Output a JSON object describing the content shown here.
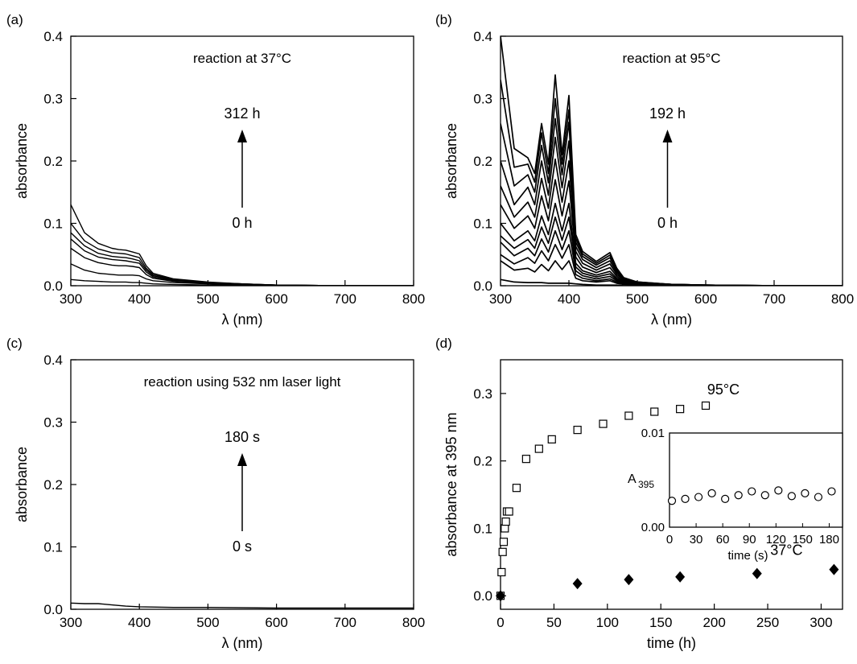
{
  "chart_data": [
    {
      "panel": "(a)",
      "type": "line",
      "annotation": "reaction at 37°C",
      "xlabel": "λ (nm)",
      "ylabel": "absorbance",
      "xlim": [
        300,
        800
      ],
      "ylim": [
        0,
        0.4
      ],
      "xticks": [
        300,
        400,
        500,
        600,
        700,
        800
      ],
      "yticks": [
        "0.0",
        "0.1",
        "0.2",
        "0.3",
        "0.4"
      ],
      "arrow_top": "312 h",
      "arrow_bottom": "0 h",
      "x": [
        300,
        320,
        340,
        360,
        370,
        380,
        390,
        400,
        410,
        420,
        450,
        500,
        550,
        600,
        700,
        800
      ],
      "series": [
        {
          "values": [
            0.01,
            0.008,
            0.007,
            0.006,
            0.006,
            0.006,
            0.005,
            0.005,
            0.004,
            0.003,
            0.002,
            0.001,
            0.001,
            0.0,
            0.0,
            0.0
          ]
        },
        {
          "values": [
            0.035,
            0.025,
            0.02,
            0.018,
            0.017,
            0.017,
            0.017,
            0.016,
            0.011,
            0.008,
            0.005,
            0.003,
            0.002,
            0.001,
            0.0,
            0.0
          ]
        },
        {
          "values": [
            0.06,
            0.045,
            0.037,
            0.033,
            0.032,
            0.032,
            0.031,
            0.029,
            0.018,
            0.012,
            0.007,
            0.004,
            0.002,
            0.001,
            0.0,
            0.0
          ]
        },
        {
          "values": [
            0.075,
            0.056,
            0.046,
            0.042,
            0.041,
            0.04,
            0.038,
            0.036,
            0.022,
            0.014,
            0.008,
            0.004,
            0.002,
            0.001,
            0.0,
            0.0
          ]
        },
        {
          "values": [
            0.085,
            0.064,
            0.052,
            0.047,
            0.046,
            0.045,
            0.043,
            0.04,
            0.025,
            0.016,
            0.009,
            0.005,
            0.003,
            0.001,
            0.0,
            0.0
          ]
        },
        {
          "values": [
            0.1,
            0.072,
            0.059,
            0.053,
            0.052,
            0.051,
            0.048,
            0.045,
            0.028,
            0.018,
            0.01,
            0.005,
            0.003,
            0.001,
            0.0,
            0.0
          ]
        },
        {
          "values": [
            0.13,
            0.085,
            0.068,
            0.06,
            0.058,
            0.057,
            0.054,
            0.051,
            0.032,
            0.02,
            0.011,
            0.006,
            0.003,
            0.001,
            0.0,
            0.0
          ]
        }
      ]
    },
    {
      "panel": "(b)",
      "type": "line",
      "annotation": "reaction at 95°C",
      "xlabel": "λ (nm)",
      "ylabel": "absorbance",
      "xlim": [
        300,
        800
      ],
      "ylim": [
        0,
        0.4
      ],
      "xticks": [
        300,
        400,
        500,
        600,
        700,
        800
      ],
      "yticks": [
        "0.0",
        "0.1",
        "0.2",
        "0.3",
        "0.4"
      ],
      "arrow_top": "192 h",
      "arrow_bottom": "0 h",
      "x": [
        300,
        320,
        340,
        350,
        360,
        370,
        380,
        390,
        400,
        410,
        420,
        440,
        460,
        470,
        480,
        500,
        550,
        600,
        700,
        800
      ],
      "series": [
        {
          "values": [
            0.01,
            0.006,
            0.005,
            0.005,
            0.005,
            0.004,
            0.004,
            0.004,
            0.004,
            0.003,
            0.002,
            0.001,
            0.001,
            0.001,
            0.0,
            0.0,
            0.0,
            0.0,
            0.0,
            0.0
          ]
        },
        {
          "values": [
            0.04,
            0.025,
            0.028,
            0.022,
            0.034,
            0.024,
            0.04,
            0.026,
            0.04,
            0.012,
            0.008,
            0.006,
            0.008,
            0.004,
            0.002,
            0.001,
            0.0,
            0.0,
            0.0,
            0.0
          ]
        },
        {
          "values": [
            0.05,
            0.035,
            0.045,
            0.036,
            0.056,
            0.04,
            0.066,
            0.044,
            0.066,
            0.018,
            0.012,
            0.008,
            0.011,
            0.006,
            0.003,
            0.002,
            0.001,
            0.0,
            0.0,
            0.0
          ]
        },
        {
          "values": [
            0.07,
            0.048,
            0.06,
            0.048,
            0.075,
            0.054,
            0.088,
            0.058,
            0.088,
            0.024,
            0.016,
            0.011,
            0.015,
            0.008,
            0.004,
            0.002,
            0.001,
            0.0,
            0.0,
            0.0
          ]
        },
        {
          "values": [
            0.08,
            0.06,
            0.074,
            0.06,
            0.094,
            0.068,
            0.11,
            0.073,
            0.11,
            0.03,
            0.02,
            0.014,
            0.019,
            0.01,
            0.005,
            0.003,
            0.001,
            0.0,
            0.0,
            0.0
          ]
        },
        {
          "values": [
            0.1,
            0.072,
            0.088,
            0.072,
            0.112,
            0.082,
            0.132,
            0.088,
            0.132,
            0.036,
            0.024,
            0.017,
            0.023,
            0.012,
            0.006,
            0.003,
            0.001,
            0.0,
            0.0,
            0.0
          ]
        },
        {
          "values": [
            0.13,
            0.092,
            0.112,
            0.092,
            0.144,
            0.104,
            0.17,
            0.112,
            0.168,
            0.046,
            0.03,
            0.021,
            0.029,
            0.015,
            0.007,
            0.004,
            0.001,
            0.0,
            0.0,
            0.0
          ]
        },
        {
          "values": [
            0.16,
            0.11,
            0.134,
            0.11,
            0.172,
            0.124,
            0.203,
            0.134,
            0.2,
            0.055,
            0.036,
            0.025,
            0.035,
            0.018,
            0.009,
            0.004,
            0.002,
            0.001,
            0.0,
            0.0
          ]
        },
        {
          "values": [
            0.2,
            0.13,
            0.158,
            0.13,
            0.2,
            0.145,
            0.238,
            0.157,
            0.232,
            0.063,
            0.042,
            0.029,
            0.04,
            0.021,
            0.01,
            0.005,
            0.002,
            0.001,
            0.0,
            0.0
          ]
        },
        {
          "values": [
            0.26,
            0.16,
            0.178,
            0.15,
            0.225,
            0.165,
            0.268,
            0.178,
            0.262,
            0.07,
            0.047,
            0.033,
            0.045,
            0.024,
            0.011,
            0.005,
            0.002,
            0.001,
            0.0,
            0.0
          ]
        },
        {
          "values": [
            0.33,
            0.19,
            0.195,
            0.166,
            0.245,
            0.18,
            0.3,
            0.195,
            0.282,
            0.076,
            0.051,
            0.036,
            0.049,
            0.026,
            0.012,
            0.006,
            0.002,
            0.001,
            0.0,
            0.0
          ]
        },
        {
          "values": [
            0.4,
            0.22,
            0.205,
            0.18,
            0.26,
            0.195,
            0.338,
            0.21,
            0.305,
            0.082,
            0.055,
            0.039,
            0.053,
            0.028,
            0.013,
            0.006,
            0.002,
            0.001,
            0.0,
            0.0
          ]
        }
      ]
    },
    {
      "panel": "(c)",
      "type": "line",
      "annotation": "reaction using 532 nm laser light",
      "xlabel": "λ (nm)",
      "ylabel": "absorbance",
      "xlim": [
        300,
        800
      ],
      "ylim": [
        0,
        0.4
      ],
      "xticks": [
        300,
        400,
        500,
        600,
        700,
        800
      ],
      "yticks": [
        "0.0",
        "0.1",
        "0.2",
        "0.3",
        "0.4"
      ],
      "arrow_top": "180 s",
      "arrow_bottom": "0 s",
      "x": [
        300,
        320,
        340,
        360,
        380,
        400,
        450,
        500,
        600,
        700,
        800
      ],
      "series": [
        {
          "values": [
            0.01,
            0.009,
            0.009,
            0.007,
            0.005,
            0.004,
            0.003,
            0.003,
            0.002,
            0.002,
            0.002
          ]
        }
      ]
    },
    {
      "panel": "(d)",
      "type": "scatter",
      "xlabel": "time (h)",
      "ylabel": "absorbance at 395 nm",
      "xlim": [
        0,
        320
      ],
      "ylim": [
        -0.02,
        0.35
      ],
      "xticks": [
        0,
        50,
        100,
        150,
        200,
        250,
        300
      ],
      "yticks": [
        "0.0",
        "0.1",
        "0.2",
        "0.3"
      ],
      "series": [
        {
          "name": "95°C",
          "marker": "open-square",
          "x": [
            0,
            1,
            2,
            3,
            4,
            5,
            6,
            8,
            15,
            24,
            36,
            48,
            72,
            96,
            120,
            144,
            168,
            192
          ],
          "y": [
            0.0,
            0.035,
            0.065,
            0.08,
            0.1,
            0.11,
            0.125,
            0.125,
            0.16,
            0.203,
            0.218,
            0.232,
            0.246,
            0.255,
            0.267,
            0.273,
            0.277,
            0.282
          ]
        },
        {
          "name": "37°C",
          "marker": "filled-diamond",
          "x": [
            0,
            72,
            120,
            168,
            240,
            312
          ],
          "y": [
            0.0,
            0.018,
            0.024,
            0.028,
            0.033,
            0.039
          ]
        }
      ],
      "inset": {
        "type": "scatter",
        "xlabel": "time (s)",
        "ylabel": "A",
        "ylabel_sub": "395",
        "xlim": [
          0,
          195
        ],
        "ylim": [
          0,
          0.01
        ],
        "xticks": [
          "0",
          "30",
          "60",
          "90",
          "120",
          "150",
          "180"
        ],
        "yticks": [
          "0.00",
          "0.01"
        ],
        "marker": "open-circle",
        "x": [
          0,
          15,
          30,
          45,
          60,
          75,
          90,
          105,
          120,
          135,
          150,
          165,
          180
        ],
        "y": [
          0.0028,
          0.003,
          0.0032,
          0.0036,
          0.003,
          0.0034,
          0.0038,
          0.0034,
          0.0039,
          0.0033,
          0.0036,
          0.0032,
          0.0038
        ]
      }
    }
  ]
}
